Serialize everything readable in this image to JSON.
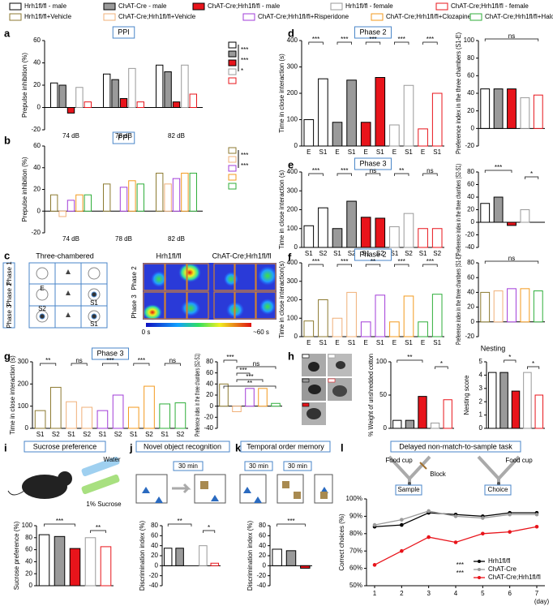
{
  "chart_data": [
    {
      "type": "grouped_bar",
      "panel": "a",
      "title": "PPI",
      "ylabel": "Prepulse inhibition (%)",
      "categories": [
        "74 dB",
        "78 dB",
        "82 dB"
      ],
      "series": [
        {
          "name": "Hrh1fl/fl - male",
          "fill": "#ffffff",
          "stroke": "#000000",
          "values": [
            22,
            30,
            38
          ]
        },
        {
          "name": "ChAT-Cre - male",
          "fill": "#9a9a9a",
          "stroke": "#000000",
          "values": [
            20,
            25,
            32
          ]
        },
        {
          "name": "ChAT-Cre;Hrh1fl/fl - male",
          "fill": "#e8141b",
          "stroke": "#000000",
          "values": [
            -5,
            8,
            5
          ]
        },
        {
          "name": "Hrh1fl/fl - female",
          "fill": "#ffffff",
          "stroke": "#999999",
          "values": [
            18,
            35,
            38
          ]
        },
        {
          "name": "ChAT-Cre;Hrh1fl/fl - female",
          "fill": "#ffffff",
          "stroke": "#e8141b",
          "values": [
            5,
            5,
            12
          ]
        }
      ],
      "ylim": [
        -20,
        60
      ],
      "yticks": [
        -20,
        0,
        20,
        40,
        60
      ],
      "significance": [
        "***",
        "***",
        "*"
      ]
    },
    {
      "type": "grouped_bar",
      "panel": "b",
      "title": "PPI",
      "ylabel": "Prepulse inhibition (%)",
      "categories": [
        "74 dB",
        "78 dB",
        "82 dB"
      ],
      "series": [
        {
          "name": "Hrh1fl/fl+Vehicle",
          "fill": "#ffffff",
          "stroke": "#8c7a30",
          "values": [
            15,
            25,
            35
          ]
        },
        {
          "name": "ChAT-Cre;Hrh1fl/fl+Vehicle",
          "fill": "#ffffff",
          "stroke": "#f0b078",
          "values": [
            -5,
            0,
            25
          ]
        },
        {
          "name": "ChAT-Cre;Hrh1fl/fl+Risperidone",
          "fill": "#ffffff",
          "stroke": "#a23cd8",
          "values": [
            10,
            22,
            30
          ]
        },
        {
          "name": "ChAT-Cre;Hrh1fl/fl+Clozapine",
          "fill": "#ffffff",
          "stroke": "#f39a1e",
          "values": [
            15,
            28,
            35
          ]
        },
        {
          "name": "ChAT-Cre;Hrh1fl/fl+Haloperidol",
          "fill": "#ffffff",
          "stroke": "#2fae3a",
          "values": [
            15,
            25,
            35
          ]
        }
      ],
      "ylim": [
        -20,
        60
      ],
      "yticks": [
        -20,
        0,
        20,
        40,
        60
      ],
      "significance": [
        "***",
        "***"
      ]
    },
    {
      "type": "bar",
      "panel": "d",
      "title": "Phase 2",
      "ylabel": "Time in close interaction (s)",
      "categories": [
        "E",
        "S1",
        "E",
        "S1",
        "E",
        "S1",
        "E",
        "S1",
        "E",
        "S1"
      ],
      "values": [
        100,
        255,
        90,
        250,
        90,
        260,
        80,
        230,
        65,
        200
      ],
      "fills": [
        "#ffffff",
        "#ffffff",
        "#9a9a9a",
        "#9a9a9a",
        "#e8141b",
        "#e8141b",
        "#ffffff",
        "#ffffff",
        "#ffffff",
        "#ffffff"
      ],
      "strokes": [
        "#000000",
        "#000000",
        "#000000",
        "#000000",
        "#000000",
        "#000000",
        "#999999",
        "#999999",
        "#e8141b",
        "#e8141b"
      ],
      "ylim": [
        0,
        400
      ],
      "yticks": [
        0,
        100,
        200,
        300,
        400
      ],
      "significance": [
        "***",
        "***",
        "***",
        "***",
        "***"
      ]
    },
    {
      "type": "bar",
      "ylabel": "Preference index in the three chambers (S1-E)",
      "values": [
        45,
        45,
        45,
        35,
        38
      ],
      "fills": [
        "#ffffff",
        "#9a9a9a",
        "#e8141b",
        "#ffffff",
        "#ffffff"
      ],
      "strokes": [
        "#000000",
        "#000000",
        "#000000",
        "#999999",
        "#e8141b"
      ],
      "ylim": [
        -20,
        100
      ],
      "yticks": [
        -20,
        0,
        20,
        40,
        60,
        80,
        100
      ],
      "significance": [
        "ns"
      ]
    },
    {
      "type": "bar",
      "panel": "e",
      "title": "Phase 3",
      "ylabel": "Time in close interaction (s)",
      "categories": [
        "S1",
        "S2",
        "S1",
        "S2",
        "S1",
        "S2",
        "S1",
        "S2",
        "S1",
        "S2"
      ],
      "values": [
        115,
        210,
        100,
        245,
        160,
        155,
        110,
        180,
        100,
        100
      ],
      "fills": [
        "#ffffff",
        "#ffffff",
        "#9a9a9a",
        "#9a9a9a",
        "#e8141b",
        "#e8141b",
        "#ffffff",
        "#ffffff",
        "#ffffff",
        "#ffffff"
      ],
      "strokes": [
        "#000000",
        "#000000",
        "#000000",
        "#000000",
        "#000000",
        "#000000",
        "#999999",
        "#999999",
        "#e8141b",
        "#e8141b"
      ],
      "ylim": [
        0,
        400
      ],
      "yticks": [
        0,
        100,
        200,
        300,
        400
      ],
      "significance": [
        "***",
        "***",
        "ns",
        "**",
        "ns"
      ]
    },
    {
      "type": "bar",
      "ylabel": "Preference index in the three chambers (S2-S1)",
      "values": [
        30,
        40,
        -5,
        20,
        0
      ],
      "fills": [
        "#ffffff",
        "#9a9a9a",
        "#e8141b",
        "#ffffff",
        "#ffffff"
      ],
      "strokes": [
        "#000000",
        "#000000",
        "#000000",
        "#999999",
        "#e8141b"
      ],
      "ylim": [
        -40,
        80
      ],
      "yticks": [
        -40,
        -20,
        0,
        20,
        40,
        60,
        80
      ],
      "significance": [
        "***",
        "*"
      ]
    },
    {
      "type": "bar",
      "panel": "f",
      "title": "Phase 2",
      "ylabel": "Time in close interaction(s)",
      "categories": [
        "E",
        "S1",
        "E",
        "S1",
        "E",
        "S1",
        "E",
        "S1",
        "E",
        "S1"
      ],
      "values": [
        85,
        200,
        100,
        240,
        80,
        225,
        80,
        220,
        80,
        230
      ],
      "fills": [
        "#ffffff",
        "#ffffff",
        "#ffffff",
        "#ffffff",
        "#ffffff",
        "#ffffff",
        "#ffffff",
        "#ffffff",
        "#ffffff",
        "#ffffff"
      ],
      "strokes": [
        "#8c7a30",
        "#8c7a30",
        "#f0b078",
        "#f0b078",
        "#a23cd8",
        "#a23cd8",
        "#f39a1e",
        "#f39a1e",
        "#2fae3a",
        "#2fae3a"
      ],
      "ylim": [
        0,
        400
      ],
      "yticks": [
        0,
        100,
        200,
        300,
        400
      ],
      "significance": [
        "***",
        "***",
        "**",
        "***",
        "***"
      ]
    },
    {
      "type": "bar",
      "ylabel": "Preference index in the three chambers (S1-E)",
      "values": [
        40,
        42,
        45,
        45,
        42
      ],
      "fills": [
        "#ffffff",
        "#ffffff",
        "#ffffff",
        "#ffffff",
        "#ffffff"
      ],
      "strokes": [
        "#8c7a30",
        "#f0b078",
        "#a23cd8",
        "#f39a1e",
        "#2fae3a"
      ],
      "ylim": [
        -20,
        80
      ],
      "yticks": [
        -20,
        0,
        20,
        40,
        60,
        80
      ],
      "significance": [
        "ns"
      ]
    },
    {
      "type": "bar",
      "panel": "g",
      "title": "Phase 3",
      "ylabel": "Time in close interaction (s)",
      "categories": [
        "S1",
        "S2",
        "S1",
        "S2",
        "S1",
        "S2",
        "S1",
        "S2",
        "S1",
        "S2"
      ],
      "values": [
        80,
        185,
        120,
        95,
        80,
        150,
        95,
        190,
        110,
        115
      ],
      "fills": [
        "#ffffff",
        "#ffffff",
        "#ffffff",
        "#ffffff",
        "#ffffff",
        "#ffffff",
        "#ffffff",
        "#ffffff",
        "#ffffff",
        "#ffffff"
      ],
      "strokes": [
        "#8c7a30",
        "#8c7a30",
        "#f0b078",
        "#f0b078",
        "#a23cd8",
        "#a23cd8",
        "#f39a1e",
        "#f39a1e",
        "#2fae3a",
        "#2fae3a"
      ],
      "ylim": [
        0,
        300
      ],
      "yticks": [
        0,
        100,
        200,
        300
      ],
      "significance": [
        "**",
        "ns",
        "***",
        "***",
        "ns"
      ]
    },
    {
      "type": "bar",
      "ylabel": "Preference index in the three chambers (S2-S1)",
      "values": [
        40,
        -10,
        32,
        32,
        5
      ],
      "fills": [
        "#ffffff",
        "#ffffff",
        "#ffffff",
        "#ffffff",
        "#ffffff"
      ],
      "strokes": [
        "#8c7a30",
        "#f0b078",
        "#a23cd8",
        "#f39a1e",
        "#2fae3a"
      ],
      "ylim": [
        -40,
        80
      ],
      "yticks": [
        -40,
        -20,
        0,
        20,
        40,
        60,
        80
      ],
      "significance": [
        "***",
        "ns",
        "***",
        "***",
        "**"
      ]
    },
    {
      "type": "bar",
      "ylabel": "% Weight of unshredded cotton",
      "values": [
        12,
        12,
        48,
        8,
        43
      ],
      "fills": [
        "#ffffff",
        "#9a9a9a",
        "#e8141b",
        "#ffffff",
        "#ffffff"
      ],
      "strokes": [
        "#000000",
        "#000000",
        "#000000",
        "#999999",
        "#e8141b"
      ],
      "ylim": [
        0,
        100
      ],
      "yticks": [
        0,
        50,
        100
      ],
      "significance": [
        "**",
        "*"
      ]
    },
    {
      "type": "bar",
      "ylabel": "Nesting score",
      "values": [
        4.2,
        4.2,
        2.8,
        4.2,
        2.5
      ],
      "fills": [
        "#ffffff",
        "#9a9a9a",
        "#e8141b",
        "#ffffff",
        "#ffffff"
      ],
      "strokes": [
        "#000000",
        "#000000",
        "#000000",
        "#999999",
        "#e8141b"
      ],
      "ylim": [
        0,
        5
      ],
      "yticks": [
        0,
        1,
        2,
        3,
        4,
        5
      ],
      "significance": [
        "*",
        "*"
      ]
    },
    {
      "type": "bar",
      "ylabel": "Sucrose preference (%)",
      "values": [
        85,
        82,
        62,
        80,
        65
      ],
      "fills": [
        "#ffffff",
        "#9a9a9a",
        "#e8141b",
        "#ffffff",
        "#ffffff"
      ],
      "strokes": [
        "#000000",
        "#000000",
        "#000000",
        "#999999",
        "#e8141b"
      ],
      "ylim": [
        0,
        100
      ],
      "yticks": [
        0,
        20,
        40,
        60,
        80,
        100
      ],
      "significance": [
        "***",
        "**"
      ]
    },
    {
      "type": "bar",
      "ylabel": "Discrimination index (%)",
      "values": [
        35,
        35,
        0,
        40,
        5
      ],
      "fills": [
        "#ffffff",
        "#9a9a9a",
        "#e8141b",
        "#ffffff",
        "#ffffff"
      ],
      "strokes": [
        "#000000",
        "#000000",
        "#000000",
        "#999999",
        "#e8141b"
      ],
      "ylim": [
        -40,
        80
      ],
      "yticks": [
        -40,
        -20,
        0,
        20,
        40,
        60,
        80
      ],
      "significance": [
        "**",
        "*"
      ]
    },
    {
      "type": "bar",
      "ylabel": "Discrimination index (%)",
      "values": [
        33,
        30,
        -5
      ],
      "fills": [
        "#ffffff",
        "#9a9a9a",
        "#e8141b"
      ],
      "strokes": [
        "#000000",
        "#000000",
        "#000000"
      ],
      "ylim": [
        -40,
        80
      ],
      "yticks": [
        -40,
        -20,
        0,
        20,
        40,
        60,
        80
      ],
      "significance": [
        "***"
      ]
    },
    {
      "type": "line",
      "ylabel": "Correct choices (%)",
      "xlabel": "(day)",
      "x": [
        1,
        2,
        3,
        4,
        5,
        6,
        7
      ],
      "xlim": [
        0.7,
        7.3
      ],
      "xticks": [
        1,
        2,
        3,
        4,
        5,
        6,
        7
      ],
      "ylim": [
        50,
        100
      ],
      "yticks": [
        {
          "value": 50,
          "label": "50%"
        },
        {
          "value": 60,
          "label": "60%"
        },
        {
          "value": 70,
          "label": "70%"
        },
        {
          "value": 80,
          "label": "80%"
        },
        {
          "value": 90,
          "label": "90%"
        },
        {
          "value": 100,
          "label": "100%"
        }
      ],
      "series": [
        {
          "name": "Hrh1fl/fl",
          "color": "#000000",
          "values": [
            84,
            85,
            92,
            91,
            90,
            92,
            92
          ]
        },
        {
          "name": "ChAT-Cre",
          "color": "#9a9a9a",
          "values": [
            85,
            88,
            93,
            90,
            89,
            91,
            91
          ]
        },
        {
          "name": "ChAT-Cre;Hrh1fl/fl",
          "color": "#e8141b",
          "values": [
            62,
            70,
            78,
            75,
            80,
            81,
            84
          ]
        }
      ],
      "significance": [
        "***",
        "***"
      ]
    }
  ],
  "schematics": {
    "c": {
      "panel": "c",
      "title": "Three-chambered",
      "phases": [
        "Phase 1",
        "Phase 2",
        "Phase 3"
      ],
      "chambers": [
        "E",
        "S1",
        "S2",
        "S1"
      ],
      "heatmap_headers": [
        "Hrh1fl/fl",
        "ChAT-Cre;Hrh1fl/fl"
      ],
      "heatmap_rows": [
        "Phase 2",
        "Phase 3"
      ],
      "colorbar": [
        "0 s",
        "~60 s"
      ]
    },
    "h": {
      "panel": "h",
      "title": "Nesting"
    },
    "i": {
      "panel": "i",
      "title": "Sucrose preference",
      "labels": [
        "Water",
        "1% Sucrose"
      ]
    },
    "j": {
      "panel": "j",
      "title": "Novel object recognition",
      "delay": "30 min"
    },
    "k": {
      "panel": "k",
      "title": "Temporal order memory",
      "delays": [
        "30 min",
        "30 min"
      ]
    },
    "l": {
      "panel": "l",
      "title": "Delayed non-match-to-sample task",
      "labels": [
        "Food cup",
        "Food cup",
        "Block"
      ],
      "phases": [
        "Sample",
        "Choice"
      ]
    }
  }
}
